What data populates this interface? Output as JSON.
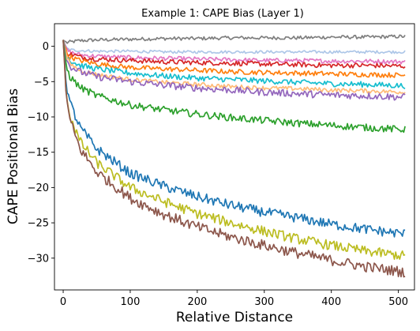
{
  "chart_data": {
    "type": "line",
    "title": "Example 1: CAPE Bias (Layer 1)",
    "xlabel": "Relative Distance",
    "ylabel": "CAPE Positional Bias",
    "xlim": [
      -13,
      524
    ],
    "ylim": [
      -34.5,
      3.2
    ],
    "xticks": [
      0,
      100,
      200,
      300,
      400,
      500
    ],
    "yticks": [
      0,
      -5,
      -10,
      -15,
      -20,
      -25,
      -30
    ],
    "grid": false,
    "legend": "none",
    "x": [
      0,
      5,
      10,
      25,
      50,
      100,
      150,
      200,
      250,
      300,
      350,
      400,
      450,
      510
    ],
    "series": [
      {
        "color": "#7f7f7f",
        "noise": 0.25,
        "values": [
          0.9,
          0.5,
          0.6,
          0.8,
          0.9,
          1.0,
          1.1,
          1.1,
          1.2,
          1.2,
          1.2,
          1.3,
          1.3,
          1.4
        ]
      },
      {
        "color": "#aec7e8",
        "noise": 0.2,
        "values": [
          0.9,
          -0.3,
          -0.5,
          -0.6,
          -0.7,
          -0.7,
          -0.8,
          -0.8,
          -0.8,
          -0.8,
          -0.8,
          -0.8,
          -0.8,
          -0.8
        ]
      },
      {
        "color": "#e377c2",
        "noise": 0.3,
        "values": [
          0.9,
          -0.5,
          -0.8,
          -1.2,
          -1.4,
          -1.6,
          -1.7,
          -1.8,
          -1.9,
          -2.0,
          -2.0,
          -2.1,
          -2.1,
          -2.2
        ]
      },
      {
        "color": "#d62728",
        "noise": 0.35,
        "values": [
          0.9,
          -0.8,
          -1.1,
          -1.5,
          -1.8,
          -2.0,
          -2.2,
          -2.3,
          -2.4,
          -2.5,
          -2.6,
          -2.7,
          -2.7,
          -2.8
        ]
      },
      {
        "color": "#ff7f0e",
        "noise": 0.35,
        "values": [
          0.9,
          -1.0,
          -1.5,
          -2.0,
          -2.5,
          -3.0,
          -3.2,
          -3.4,
          -3.6,
          -3.7,
          -3.8,
          -3.9,
          -4.0,
          -4.1
        ]
      },
      {
        "color": "#17becf",
        "noise": 0.4,
        "values": [
          0.9,
          -1.2,
          -2.0,
          -2.7,
          -3.2,
          -3.8,
          -4.2,
          -4.5,
          -4.7,
          -4.9,
          -5.1,
          -5.3,
          -5.4,
          -5.6
        ]
      },
      {
        "color": "#ffbb78",
        "noise": 0.3,
        "values": [
          0.9,
          -1.5,
          -2.5,
          -3.4,
          -4.0,
          -4.7,
          -5.1,
          -5.4,
          -5.7,
          -5.9,
          -6.0,
          -6.2,
          -6.3,
          -6.5
        ]
      },
      {
        "color": "#9467bd",
        "noise": 0.5,
        "values": [
          0.9,
          -2.0,
          -2.8,
          -3.6,
          -4.3,
          -5.0,
          -5.5,
          -5.9,
          -6.2,
          -6.5,
          -6.7,
          -6.9,
          -7.0,
          -7.2
        ]
      },
      {
        "color": "#2ca02c",
        "noise": 0.5,
        "values": [
          0.9,
          -3.0,
          -4.3,
          -5.8,
          -7.0,
          -8.3,
          -9.0,
          -9.6,
          -10.1,
          -10.5,
          -10.9,
          -11.2,
          -11.5,
          -11.8
        ]
      },
      {
        "color": "#1f77b4",
        "noise": 0.7,
        "values": [
          0.9,
          -5.5,
          -8.0,
          -11.5,
          -14.5,
          -18.0,
          -19.8,
          -21.3,
          -22.5,
          -23.5,
          -24.3,
          -25.2,
          -25.9,
          -26.6
        ]
      },
      {
        "color": "#bcbd22",
        "noise": 0.7,
        "values": [
          0.9,
          -7.0,
          -9.8,
          -13.5,
          -16.5,
          -20.0,
          -22.0,
          -23.7,
          -25.0,
          -26.2,
          -27.3,
          -28.2,
          -29.0,
          -29.7
        ]
      },
      {
        "color": "#8c564b",
        "noise": 0.75,
        "values": [
          0.9,
          -7.5,
          -10.5,
          -14.5,
          -17.8,
          -21.5,
          -23.8,
          -25.6,
          -27.0,
          -28.2,
          -29.3,
          -30.3,
          -31.2,
          -32.0
        ]
      }
    ]
  }
}
